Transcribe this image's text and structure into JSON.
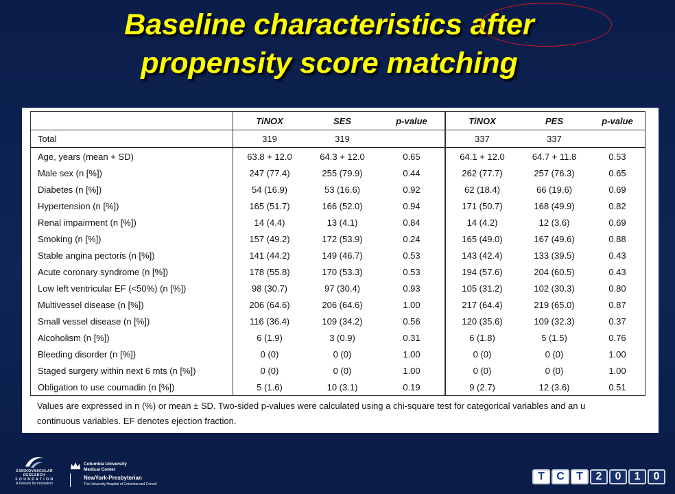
{
  "slide": {
    "title_line1": "Baseline characteristics after",
    "title_line2": "propensity score matching"
  },
  "table": {
    "headers": [
      "",
      "TiNOX",
      "SES",
      "p-value",
      "TiNOX",
      "PES",
      "p-value"
    ],
    "total_row": {
      "label": "Total",
      "cells": [
        "319",
        "319",
        "",
        "337",
        "337",
        ""
      ]
    },
    "rows": [
      {
        "label": "Age, years (mean + SD)",
        "cells": [
          "63.8 + 12.0",
          "64.3 + 12.0",
          "0.65",
          "64.1 + 12.0",
          "64.7 + 11.8",
          "0.53"
        ]
      },
      {
        "label": "Male sex (n [%])",
        "cells": [
          "247 (77.4)",
          "255 (79.9)",
          "0.44",
          "262 (77.7)",
          "257 (76.3)",
          "0.65"
        ]
      },
      {
        "label": "Diabetes (n [%])",
        "cells": [
          "54 (16.9)",
          "53 (16.6)",
          "0.92",
          "62 (18.4)",
          "66 (19.6)",
          "0.69"
        ]
      },
      {
        "label": "Hypertension (n [%])",
        "cells": [
          "165 (51.7)",
          "166 (52.0)",
          "0.94",
          "171 (50.7)",
          "168 (49.9)",
          "0.82"
        ]
      },
      {
        "label": "Renal impairment (n [%])",
        "cells": [
          "14 (4.4)",
          "13 (4.1)",
          "0.84",
          "14 (4.2)",
          "12 (3.6)",
          "0.69"
        ]
      },
      {
        "label": "Smoking (n [%])",
        "cells": [
          "157 (49.2)",
          "172 (53.9)",
          "0.24",
          "165 (49.0)",
          "167 (49.6)",
          "0.88"
        ]
      },
      {
        "label": "Stable angina pectoris (n [%])",
        "cells": [
          "141 (44.2)",
          "149 (46.7)",
          "0.53",
          "143 (42.4)",
          "133 (39.5)",
          "0.43"
        ]
      },
      {
        "label": "Acute coronary syndrome (n [%])",
        "cells": [
          "178 (55.8)",
          "170 (53.3)",
          "0.53",
          "194 (57.6)",
          "204 (60.5)",
          "0.43"
        ]
      },
      {
        "label": "Low left ventricular EF (<50%) (n [%])",
        "cells": [
          "98 (30.7)",
          "97 (30.4)",
          "0.93",
          "105 (31.2)",
          "102 (30.3)",
          "0.80"
        ]
      },
      {
        "label": "Multivessel disease (n [%])",
        "cells": [
          "206 (64.6)",
          "206 (64.6)",
          "1.00",
          "217 (64.4)",
          "219 (65.0)",
          "0.87"
        ]
      },
      {
        "label": "Small vessel disease (n [%])",
        "cells": [
          "116 (36.4)",
          "109 (34.2)",
          "0.56",
          "120 (35.6)",
          "109 (32.3)",
          "0.37"
        ]
      },
      {
        "label": "Alcoholism (n [%])",
        "cells": [
          "6 (1.9)",
          "3 (0.9)",
          "0.31",
          "6 (1.8)",
          "5 (1.5)",
          "0.76"
        ]
      },
      {
        "label": "Bleeding disorder (n [%])",
        "cells": [
          "0 (0)",
          "0 (0)",
          "1.00",
          "0 (0)",
          "0 (0)",
          "1.00"
        ]
      },
      {
        "label": "Staged surgery within next 6 mts (n [%])",
        "cells": [
          "0 (0)",
          "0 (0)",
          "1.00",
          "0 (0)",
          "0 (0)",
          "1.00"
        ]
      },
      {
        "label": "Obligation to use coumadin (n [%])",
        "cells": [
          "5 (1.6)",
          "10 (3.1)",
          "0.19",
          "9 (2.7)",
          "12 (3.6)",
          "0.51"
        ]
      }
    ],
    "note_line1": "Values are expressed in n (%) or mean ± SD. Two-sided p-values were calculated using a chi-square test for categorical variables and an u",
    "note_line2": "continuous variables. EF denotes ejection fraction."
  },
  "footer": {
    "crf_name_1": "CARDIOVASCULAR RESEARCH",
    "crf_name_2": "F O U N D A T I O N",
    "crf_tagline": "A Passion for Innovation",
    "cumc_line1": "Columbia University",
    "cumc_line2": "Medical Center",
    "nyp_line1": "NewYork-Presbyterian",
    "nyp_line2": "The University Hospital of Columbia and Cornell",
    "tct_logo": [
      "T",
      "C",
      "T",
      "2",
      "0",
      "1",
      "0"
    ]
  },
  "colors": {
    "background": "#0e2556",
    "title": "#ffff00",
    "highlight_circle": "#d21c1c",
    "panel": "#ffffff"
  }
}
